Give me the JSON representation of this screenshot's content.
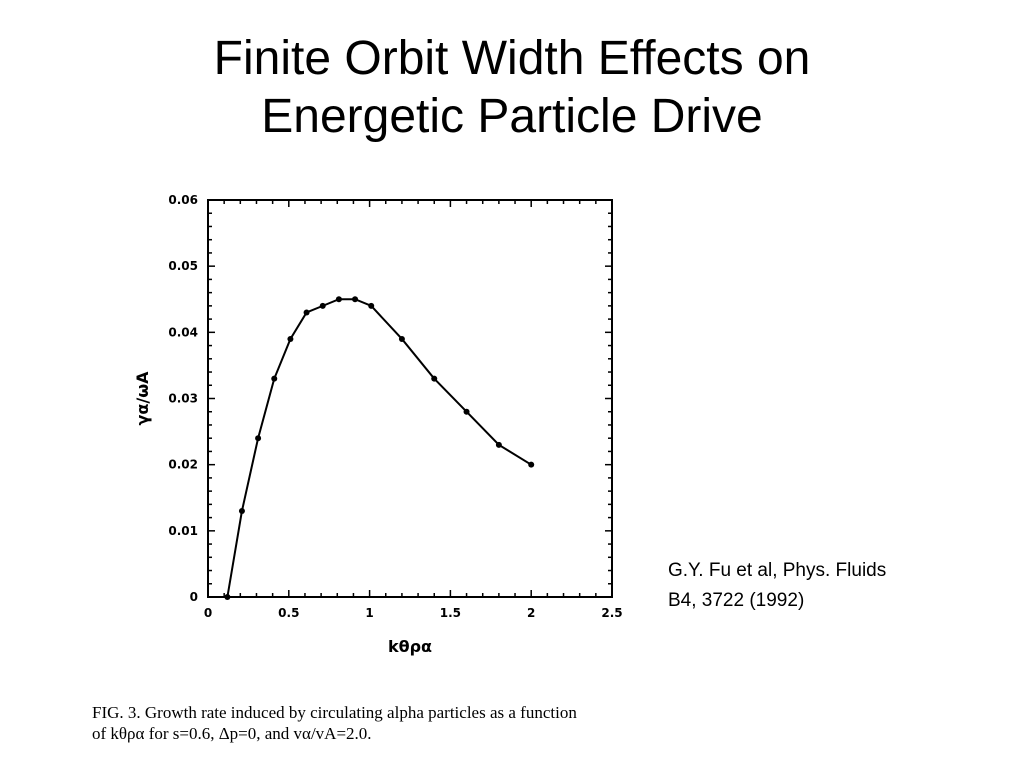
{
  "slide": {
    "title_line1": "Finite Orbit Width Effects on",
    "title_line2": "Energetic Particle Drive"
  },
  "citation": {
    "line1": "G.Y. Fu et al, Phys.  Fluids",
    "line2": "B4, 3722 (1992)"
  },
  "caption": {
    "line1": "FIG. 3.  Growth rate induced by circulating alpha particles as a function",
    "line2": "of kθρα for s=0.6, Δp=0, and vα/vA=2.0."
  },
  "chart_data": {
    "type": "line",
    "title": "",
    "xlabel": "kθρα",
    "ylabel": "γα/ωA",
    "xlim": [
      0,
      2.5
    ],
    "ylim": [
      0,
      0.06
    ],
    "x_ticks": [
      "0",
      "0.5",
      "1",
      "1.5",
      "2",
      "2.5"
    ],
    "y_ticks": [
      "0",
      "0.01",
      "0.02",
      "0.03",
      "0.04",
      "0.05",
      "0.06"
    ],
    "grid": false,
    "series": [
      {
        "x": [
          0.12,
          0.21,
          0.31,
          0.41,
          0.51,
          0.61,
          0.71,
          0.81,
          0.91,
          1.01,
          1.2,
          1.4,
          1.6,
          1.8,
          2.0
        ],
        "y": [
          0.0,
          0.013,
          0.024,
          0.033,
          0.039,
          0.043,
          0.044,
          0.045,
          0.045,
          0.044,
          0.039,
          0.033,
          0.028,
          0.023,
          0.02
        ]
      }
    ],
    "color": "#000000"
  }
}
